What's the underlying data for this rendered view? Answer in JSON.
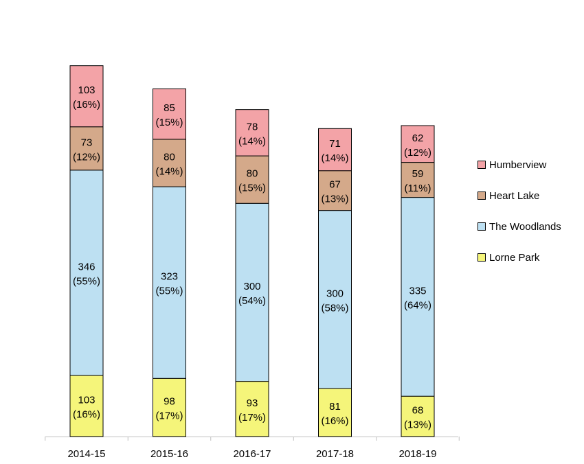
{
  "chart_data": {
    "type": "bar",
    "stacked": true,
    "categories": [
      "2014-15",
      "2015-16",
      "2016-17",
      "2017-18",
      "2018-19"
    ],
    "series": [
      {
        "name": "Lorne Park",
        "color": "#f5f57a",
        "values": [
          103,
          98,
          93,
          81,
          68
        ],
        "labels": [
          "(16%)",
          "(17%)",
          "(17%)",
          "(16%)",
          "(13%)"
        ]
      },
      {
        "name": "The Woodlands",
        "color": "#bde0f2",
        "values": [
          346,
          323,
          300,
          300,
          335
        ],
        "labels": [
          "(55%)",
          "(55%)",
          "(54%)",
          "(58%)",
          "(64%)"
        ]
      },
      {
        "name": "Heart Lake",
        "color": "#d4a98a",
        "values": [
          73,
          80,
          80,
          67,
          59
        ],
        "labels": [
          "(12%)",
          "(14%)",
          "(15%)",
          "(13%)",
          "(11%)"
        ]
      },
      {
        "name": "Humberview",
        "color": "#f3a3a7",
        "values": [
          103,
          85,
          78,
          71,
          62
        ],
        "labels": [
          "(16%)",
          "(15%)",
          "(14%)",
          "(14%)",
          "(12%)"
        ]
      }
    ],
    "title": "",
    "xlabel": "",
    "ylabel": "",
    "ylim": [
      0,
      700
    ],
    "grid": false,
    "legend_position": "right",
    "legend_order": [
      "Humberview",
      "Heart Lake",
      "The Woodlands",
      "Lorne Park"
    ]
  }
}
